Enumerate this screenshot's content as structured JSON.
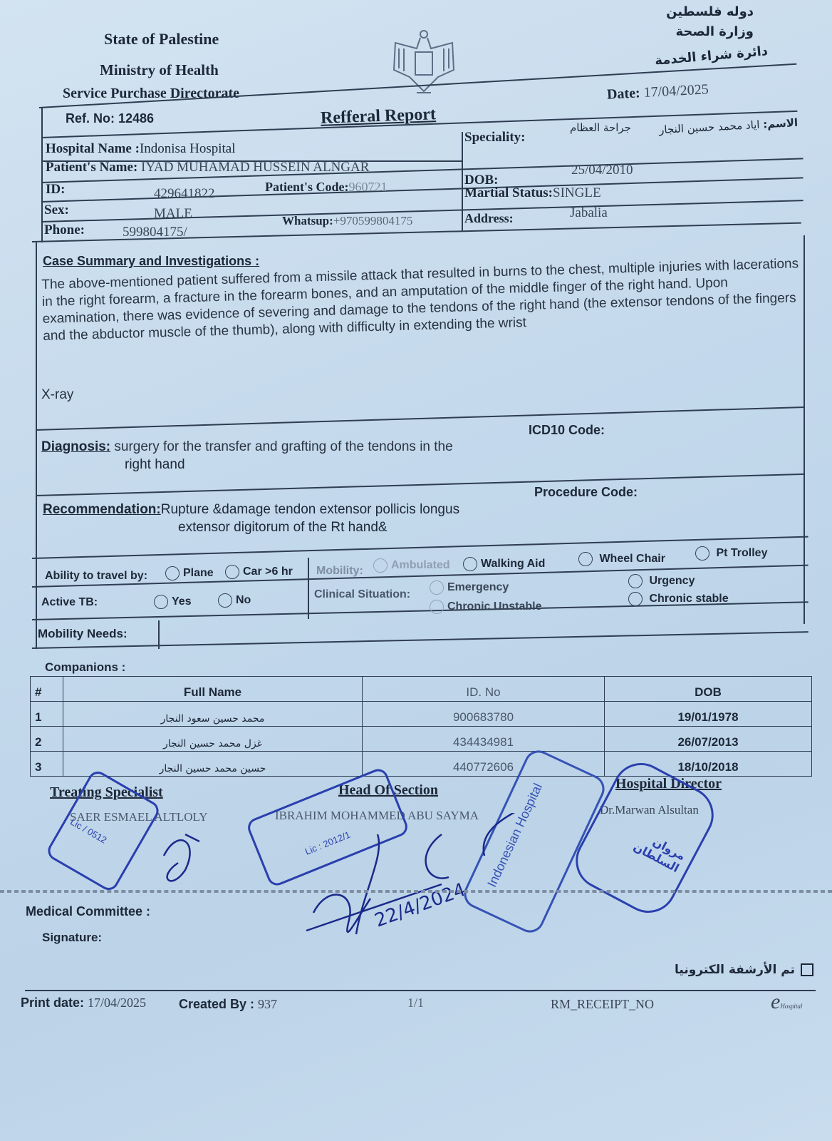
{
  "header": {
    "left": [
      "State of Palestine",
      "Ministry of Health",
      "Service Purchase Directorate"
    ],
    "right_ar": [
      "دوله فلسطين",
      "وزارة الصحة",
      "دائرة شراء الخدمة"
    ],
    "emblem": "eagle-emblem",
    "date_label": "Date:",
    "date": "17/04/2025"
  },
  "ref": {
    "label": "Ref. No:",
    "value": "12486"
  },
  "title": "Refferal Report",
  "patient": {
    "hospital_label": "Hospital Name :",
    "hospital": "Indonisa Hospital",
    "name_label": "Patient's Name:",
    "name": "IYAD MUHAMAD HUSSEIN ALNGAR",
    "id_label": "ID:",
    "id": "429641822",
    "code_label": "Patient's Code:",
    "code": "960721",
    "sex_label": "Sex:",
    "sex": "MALE",
    "phone_label": "Phone:",
    "phone": "599804175/",
    "whatsapp_label": "Whatsup:",
    "whatsapp": "+970599804175",
    "speciality_label": "Speciality:",
    "speciality": "جراحة العظام",
    "name_ar_label": "الاسم:",
    "name_ar": "اياد محمد حسين النجار",
    "dob_label": "DOB:",
    "dob": "25/04/2010",
    "marital_label": "Martial Status:",
    "marital": "SINGLE",
    "address_label": "Address:",
    "address": "Jabalia"
  },
  "case": {
    "heading": "Case Summary and Investigations :",
    "text": "The above-mentioned patient suffered from a missile attack that resulted in burns to the chest, multiple injuries with lacerations in the right forearm, a fracture in the forearm bones, and an amputation of the middle finger of the right hand. Upon examination, there was evidence of severing and damage to the tendons of the right hand (the extensor tendons of the fingers and the abductor muscle of the thumb), along with difficulty in extending the wrist",
    "xray": "X-ray"
  },
  "diagnosis": {
    "label": "Diagnosis:",
    "line1": "surgery for the transfer and grafting of the tendons in the",
    "line2": "right hand",
    "icd_label": "ICD10 Code:"
  },
  "recommendation": {
    "label": "Recommendation:",
    "line1": "Rupture &damage tendon extensor pollicis longus",
    "line2": "extensor digitorum of the Rt hand&",
    "proc_label": "Procedure Code:"
  },
  "travel": {
    "label": "Ability to travel by:",
    "options": [
      "Plane",
      "Car >6 hr"
    ]
  },
  "tb": {
    "label": "Active TB:",
    "options": [
      "Yes",
      "No"
    ]
  },
  "mobility": {
    "label": "Mobility:",
    "options": [
      "Ambulated",
      "Walking Aid",
      "Wheel Chair",
      "Pt Trolley"
    ]
  },
  "clinical": {
    "label": "Clinical Situation:",
    "options": [
      "Emergency",
      "Chronic Unstable",
      "Urgency",
      "Chronic stable"
    ]
  },
  "mobility_needs": {
    "label": "Mobility Needs:"
  },
  "companions": {
    "label": "Companions :",
    "columns": [
      "#",
      "Full Name",
      "ID. No",
      "DOB"
    ],
    "rows": [
      [
        "1",
        "محمد حسين سعود النجار",
        "900683780",
        "19/01/1978"
      ],
      [
        "2",
        "غزل محمد حسين النجار",
        "434434981",
        "26/07/2013"
      ],
      [
        "3",
        "حسين محمد حسين النجار",
        "440772606",
        "18/10/2018"
      ]
    ]
  },
  "signatures": [
    {
      "title": "Treating Specialist",
      "name": "SAER ESMAEL ALTLOLY"
    },
    {
      "title": "Head Of Section",
      "name": "IBRAHIM MOHAMMED ABU SAYMA"
    },
    {
      "title": "Hospital Director",
      "name": "Dr.Marwan Alsultan"
    }
  ],
  "stamps": [
    "Lic / 0512",
    "Lic : 2012/1",
    "Indonesian Hospital",
    "مروان السلطان"
  ],
  "handwritten_date": "22/4/2024",
  "committee": {
    "label": "Medical Committee   :",
    "signature_label": "Signature:"
  },
  "archive": {
    "label": "تم الأرشفة الكترونيا",
    "checked": false
  },
  "footer": {
    "print_label": "Print date:",
    "print_date": "17/04/2025",
    "created_label": "Created By :",
    "created_by": "937",
    "page": "1/1",
    "receipt": "RM_RECEIPT_NO",
    "logo": "e-hospital-logo"
  },
  "colors": {
    "paper": "#c4d9ec",
    "ink": "#1d2838",
    "stamp": "#2a3fae"
  }
}
